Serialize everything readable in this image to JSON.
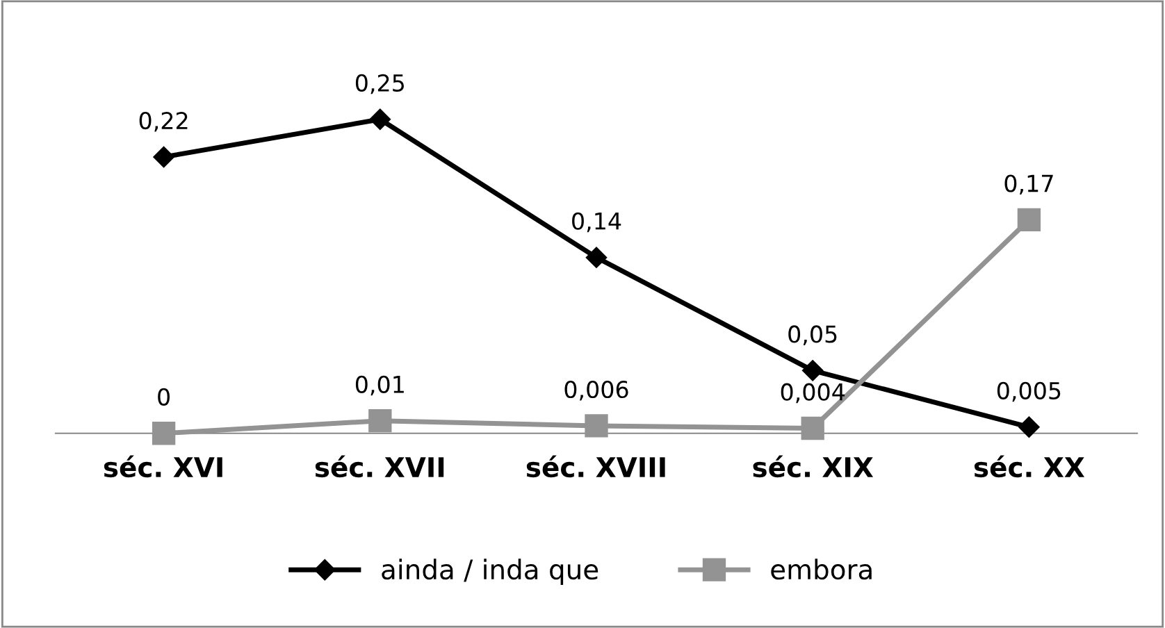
{
  "chart_data": {
    "type": "line",
    "categories": [
      "séc. XVI",
      "séc. XVII",
      "séc. XVIII",
      "séc. XIX",
      "séc. XX"
    ],
    "series": [
      {
        "name": "ainda / inda que",
        "color": "#000000",
        "marker": "diamond",
        "values": [
          0.22,
          0.25,
          0.14,
          0.05,
          0.005
        ],
        "value_labels": [
          "0,22",
          "0,25",
          "0,14",
          "0,05",
          "0,005"
        ]
      },
      {
        "name": "embora",
        "color": "#939393",
        "marker": "square",
        "values": [
          0,
          0.01,
          0.006,
          0.004,
          0.17
        ],
        "value_labels": [
          "0",
          "0,01",
          "0,006",
          "0,004",
          "0,17"
        ]
      }
    ],
    "legend": "bottom",
    "grid": false,
    "line_style": "solid"
  }
}
